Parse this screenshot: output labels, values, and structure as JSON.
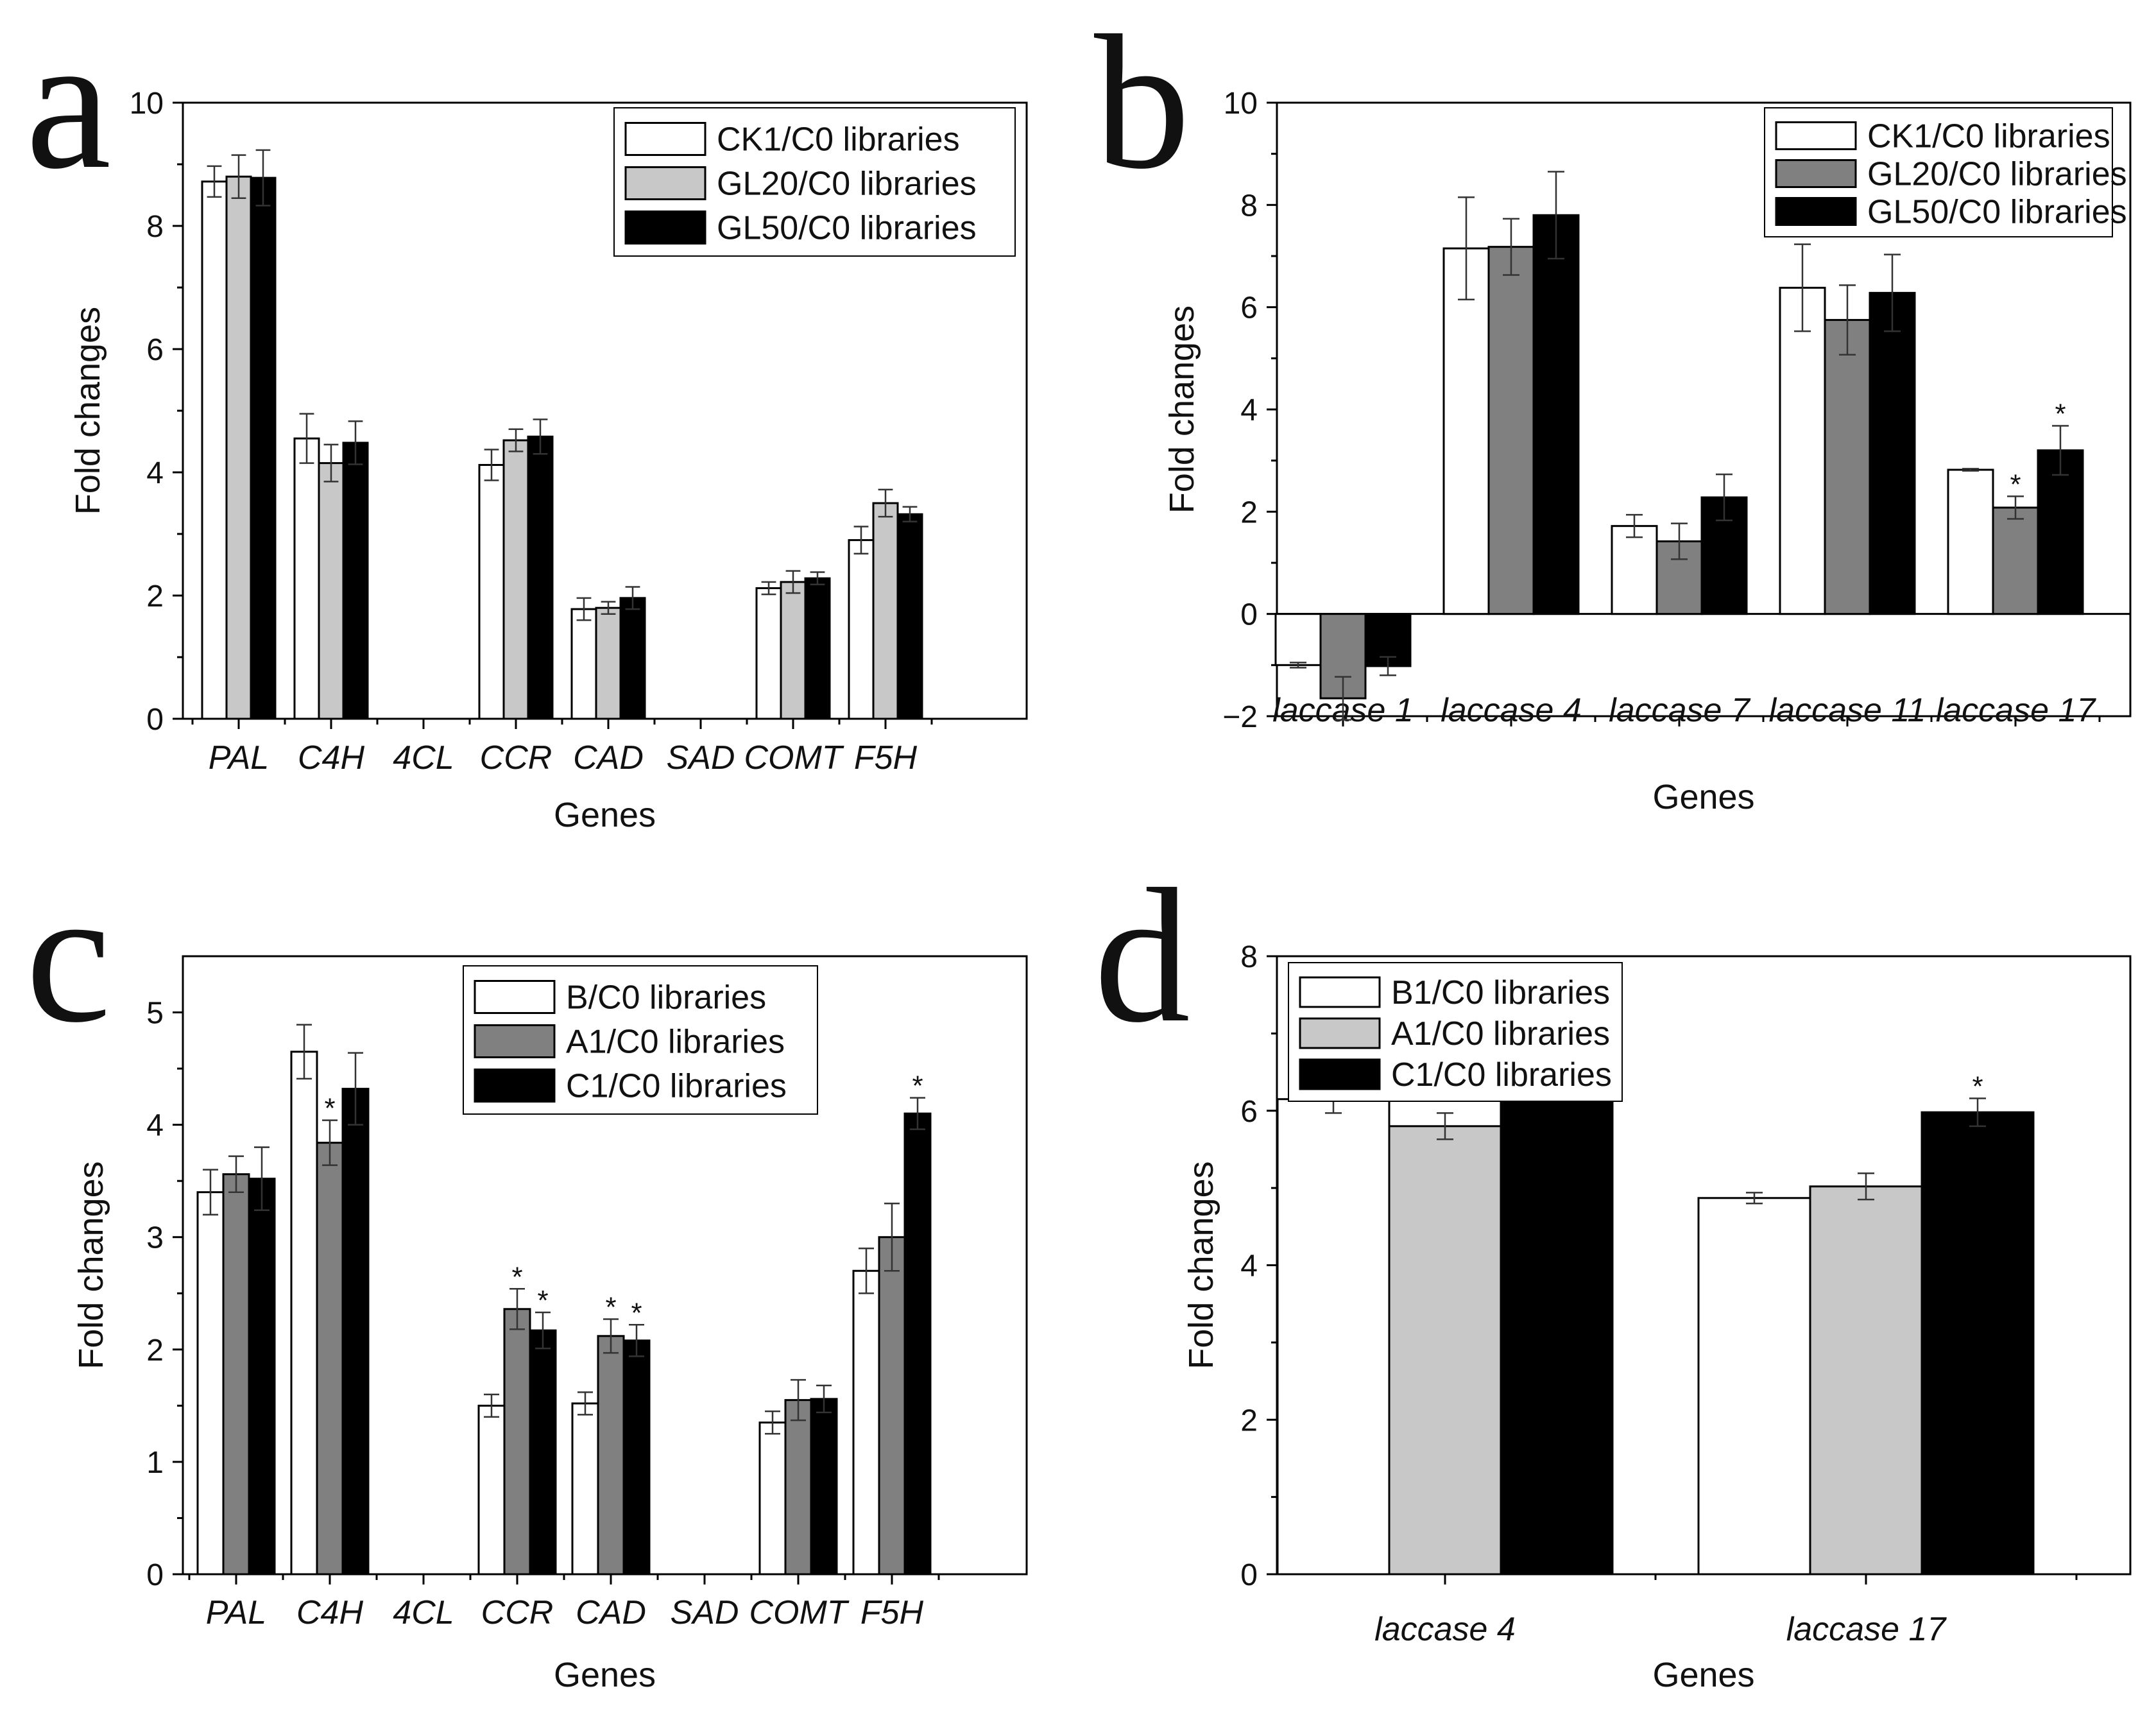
{
  "colors": {
    "white": "#ffffff",
    "lightgray": "#c8c8c8",
    "midgray": "#808080",
    "black": "#000000",
    "axis": "#000000"
  },
  "chart_data": [
    {
      "panel": "a",
      "type": "bar",
      "xlabel": "Genes",
      "ylabel": "Fold changes",
      "ylim": [
        0,
        10
      ],
      "yticks": [
        "0",
        "2",
        "4",
        "6",
        "8",
        "10"
      ],
      "categories": [
        "PAL",
        "C4H",
        "4CL",
        "CCR",
        "CAD",
        "SAD",
        "COMT",
        "F5H"
      ],
      "series": [
        {
          "name": "CK1/C0 libraries",
          "color": "#ffffff",
          "values": [
            8.72,
            4.55,
            null,
            4.12,
            1.78,
            null,
            2.12,
            2.9
          ],
          "errors": [
            0.25,
            0.4,
            null,
            0.25,
            0.18,
            null,
            0.1,
            0.22
          ],
          "stars": [
            false,
            false,
            false,
            false,
            false,
            false,
            false,
            false
          ]
        },
        {
          "name": "GL20/C0 libraries",
          "color": "#c8c8c8",
          "values": [
            8.8,
            4.15,
            null,
            4.52,
            1.8,
            null,
            2.22,
            3.5
          ],
          "errors": [
            0.35,
            0.3,
            null,
            0.18,
            0.1,
            null,
            0.18,
            0.22
          ],
          "stars": [
            false,
            false,
            false,
            false,
            false,
            false,
            false,
            false
          ]
        },
        {
          "name": "GL50/C0 libraries",
          "color": "#000000",
          "values": [
            8.78,
            4.48,
            null,
            4.58,
            1.96,
            null,
            2.28,
            3.32
          ],
          "errors": [
            0.45,
            0.35,
            null,
            0.28,
            0.18,
            null,
            0.1,
            0.12
          ],
          "stars": [
            false,
            false,
            false,
            false,
            false,
            false,
            false,
            false
          ]
        }
      ]
    },
    {
      "panel": "b",
      "type": "bar",
      "xlabel": "Genes",
      "ylabel": "Fold changes",
      "ylim": [
        -2,
        10
      ],
      "yticks": [
        "−2",
        "0",
        "2",
        "4",
        "6",
        "8",
        "10"
      ],
      "categories": [
        "laccase 1",
        "laccase 4",
        "laccase 7",
        "laccase 11",
        "laccase 17"
      ],
      "series": [
        {
          "name": "CK1/C0 libraries",
          "color": "#ffffff",
          "values": [
            -1.0,
            7.15,
            1.72,
            6.38,
            2.82
          ],
          "errors": [
            0.05,
            1.0,
            0.22,
            0.85,
            0.02
          ],
          "stars": [
            false,
            false,
            false,
            false,
            false
          ]
        },
        {
          "name": "GL20/C0 libraries",
          "color": "#808080",
          "values": [
            -1.65,
            7.18,
            1.42,
            5.75,
            2.08
          ],
          "errors": [
            0.42,
            0.55,
            0.35,
            0.68,
            0.22
          ],
          "stars": [
            false,
            false,
            false,
            false,
            true
          ]
        },
        {
          "name": "GL50/C0 libraries",
          "color": "#000000",
          "values": [
            -1.02,
            7.8,
            2.28,
            6.28,
            3.2
          ],
          "errors": [
            0.18,
            0.85,
            0.45,
            0.75,
            0.48
          ],
          "stars": [
            false,
            false,
            false,
            false,
            true
          ]
        }
      ]
    },
    {
      "panel": "c",
      "type": "bar",
      "xlabel": "Genes",
      "ylabel": "Fold changes",
      "ylim": [
        0,
        5.5
      ],
      "yticks": [
        "0",
        "1",
        "2",
        "3",
        "4",
        "5"
      ],
      "categories": [
        "PAL",
        "C4H",
        "4CL",
        "CCR",
        "CAD",
        "SAD",
        "COMT",
        "F5H"
      ],
      "series": [
        {
          "name": "B/C0 libraries",
          "color": "#ffffff",
          "values": [
            3.4,
            4.65,
            null,
            1.5,
            1.52,
            null,
            1.35,
            2.7
          ],
          "errors": [
            0.2,
            0.24,
            null,
            0.1,
            0.1,
            null,
            0.1,
            0.2
          ],
          "stars": [
            false,
            false,
            false,
            false,
            false,
            false,
            false,
            false
          ]
        },
        {
          "name": "A1/C0 libraries",
          "color": "#808080",
          "values": [
            3.56,
            3.84,
            null,
            2.36,
            2.12,
            null,
            1.55,
            3.0
          ],
          "errors": [
            0.16,
            0.2,
            null,
            0.18,
            0.15,
            null,
            0.18,
            0.3
          ],
          "stars": [
            false,
            true,
            false,
            true,
            true,
            false,
            false,
            false
          ]
        },
        {
          "name": "C1/C0 libraries",
          "color": "#000000",
          "values": [
            3.52,
            4.32,
            null,
            2.17,
            2.08,
            null,
            1.56,
            4.1
          ],
          "errors": [
            0.28,
            0.32,
            null,
            0.16,
            0.14,
            null,
            0.12,
            0.14
          ],
          "stars": [
            false,
            false,
            false,
            true,
            true,
            false,
            false,
            true
          ]
        }
      ]
    },
    {
      "panel": "d",
      "type": "bar",
      "xlabel": "Genes",
      "ylabel": "Fold changes",
      "ylim": [
        0,
        8
      ],
      "yticks": [
        "0",
        "2",
        "4",
        "6",
        "8"
      ],
      "categories": [
        "laccase 4",
        "laccase 17"
      ],
      "series": [
        {
          "name": "B1/C0 libraries",
          "color": "#ffffff",
          "values": [
            6.15,
            4.87
          ],
          "errors": [
            0.18,
            0.07
          ],
          "stars": [
            false,
            false
          ]
        },
        {
          "name": "A1/C0 libraries",
          "color": "#c8c8c8",
          "values": [
            5.8,
            5.02
          ],
          "errors": [
            0.17,
            0.17
          ],
          "stars": [
            false,
            false
          ]
        },
        {
          "name": "C1/C0 libraries",
          "color": "#000000",
          "values": [
            6.18,
            5.98
          ],
          "errors": [
            0.0,
            0.18
          ],
          "stars": [
            false,
            true
          ]
        }
      ]
    }
  ]
}
